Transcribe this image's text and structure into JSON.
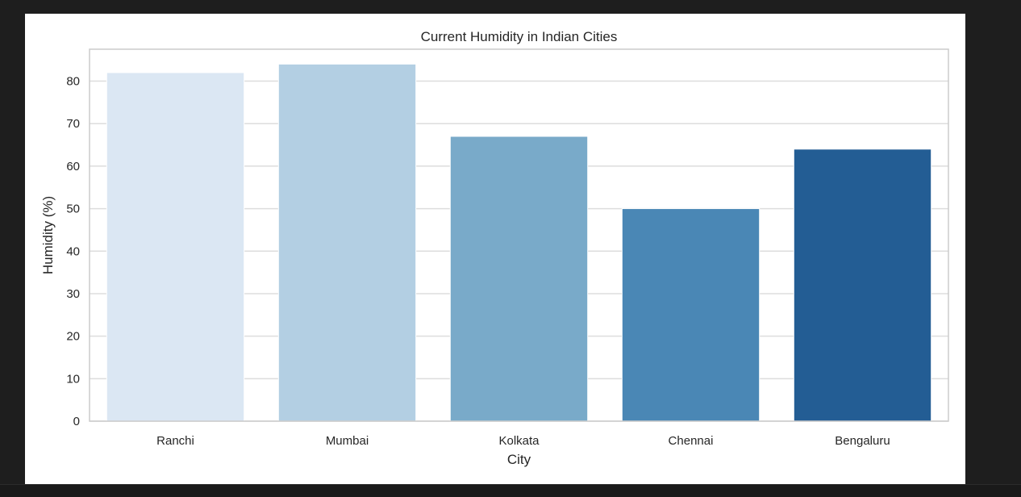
{
  "chart_data": {
    "type": "bar",
    "title": "Current Humidity in Indian Cities",
    "xlabel": "City",
    "ylabel": "Humidity (%)",
    "categories": [
      "Ranchi",
      "Mumbai",
      "Kolkata",
      "Chennai",
      "Bengaluru"
    ],
    "values": [
      82,
      84,
      67,
      50,
      64
    ],
    "colors": [
      "#dbe7f3",
      "#b3cfe3",
      "#79aac9",
      "#4a87b5",
      "#235d94"
    ],
    "ylim": [
      0,
      87.5
    ],
    "yticks": [
      0,
      10,
      20,
      30,
      40,
      50,
      60,
      70,
      80
    ],
    "grid": true,
    "grid_axis": "y",
    "legend": "none"
  }
}
